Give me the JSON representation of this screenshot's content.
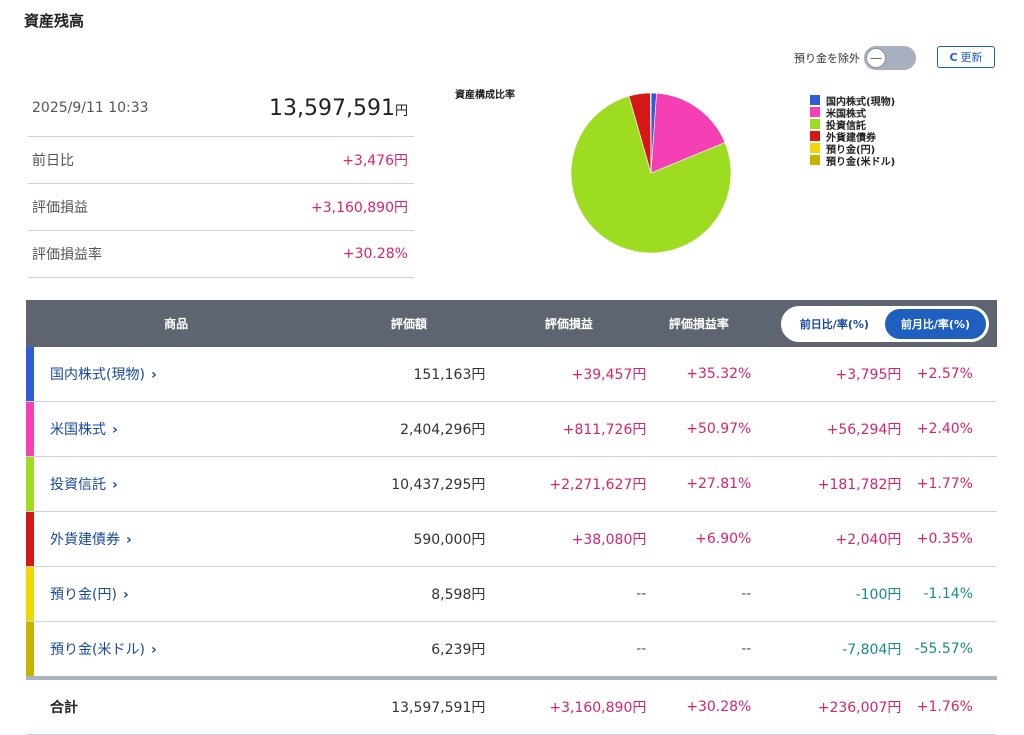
{
  "page": {
    "title": "資産残高"
  },
  "controls": {
    "exclude_label": "預り金を除外",
    "toggle_knob": "—",
    "refresh_icon": "C",
    "refresh_label": "更新"
  },
  "summary": {
    "datetime": "2025/9/11 10:33",
    "total": "13,597,591",
    "total_unit": "円",
    "rows": [
      {
        "label": "前日比",
        "value": "+3,476円"
      },
      {
        "label": "評価損益",
        "value": "+3,160,890円"
      },
      {
        "label": "評価損益率",
        "value": "+30.28%"
      }
    ]
  },
  "chart": {
    "title": "資産構成比率"
  },
  "chart_data": {
    "type": "pie",
    "labels": [
      "国内株式(現物)",
      "米国株式",
      "投資信託",
      "外貨建債券",
      "預り金(円)",
      "預り金(米ドル)"
    ],
    "values": [
      151163,
      2404296,
      10437295,
      590000,
      8598,
      6239
    ],
    "colors": [
      "#2e5bd8",
      "#f53fb4",
      "#9ddc20",
      "#d41818",
      "#f0d800",
      "#c8b400"
    ]
  },
  "table": {
    "headers": [
      "商品",
      "評価額",
      "評価損益",
      "評価損益率"
    ],
    "seg_left": "前日比/率(%)",
    "seg_right": "前月比/率(%)",
    "rows": [
      {
        "name": "国内株式(現物)",
        "value": "151,163円",
        "pl": "+39,457円",
        "plr": "+35.32%",
        "mo": "+3,795円",
        "mor": "+2.57%",
        "color": "#2e5bd8",
        "sign": "pos"
      },
      {
        "name": "米国株式",
        "value": "2,404,296円",
        "pl": "+811,726円",
        "plr": "+50.97%",
        "mo": "+56,294円",
        "mor": "+2.40%",
        "color": "#f53fb4",
        "sign": "pos"
      },
      {
        "name": "投資信託",
        "value": "10,437,295円",
        "pl": "+2,271,627円",
        "plr": "+27.81%",
        "mo": "+181,782円",
        "mor": "+1.77%",
        "color": "#9ddc20",
        "sign": "pos"
      },
      {
        "name": "外貨建債券",
        "value": "590,000円",
        "pl": "+38,080円",
        "plr": "+6.90%",
        "mo": "+2,040円",
        "mor": "+0.35%",
        "color": "#d41818",
        "sign": "pos"
      },
      {
        "name": "預り金(円)",
        "value": "8,598円",
        "pl": "--",
        "plr": "--",
        "mo": "-100円",
        "mor": "-1.14%",
        "color": "#f0d800",
        "sign": "neg"
      },
      {
        "name": "預り金(米ドル)",
        "value": "6,239円",
        "pl": "--",
        "plr": "--",
        "mo": "-7,804円",
        "mor": "-55.57%",
        "color": "#c8b400",
        "sign": "neg"
      }
    ],
    "chevron": "›",
    "total": {
      "label": "合計",
      "value": "13,597,591円",
      "pl": "+3,160,890円",
      "plr": "+30.28%",
      "mo": "+236,007円",
      "mor": "+1.76%"
    }
  }
}
